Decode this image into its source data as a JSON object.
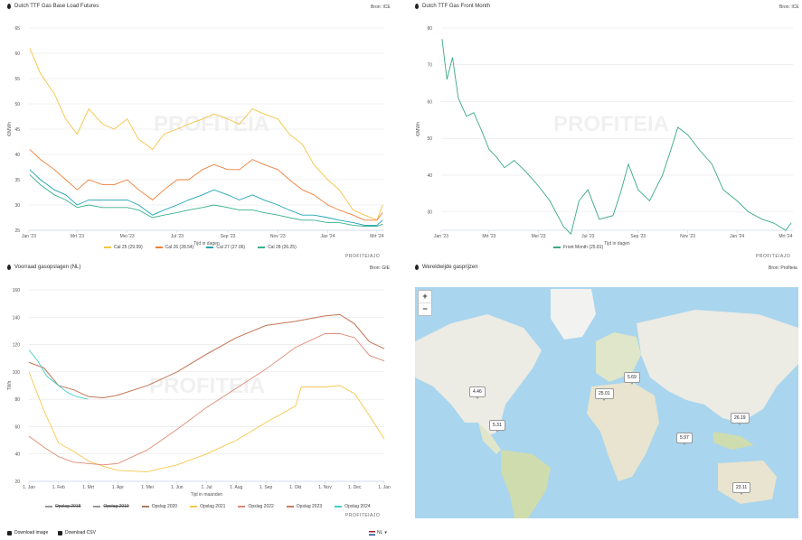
{
  "panels": {
    "futures": {
      "title": "Dutch TTF Gas Base Load Futures",
      "source": "Bron: ICE",
      "brand": "PROFITEIAJO"
    },
    "front": {
      "title": "Dutch TTF Gas Front Month",
      "source": "Bron: ICE",
      "brand": "PROFITEIAJO"
    },
    "storage": {
      "title": "Voorraad gasopslagen (NL)",
      "source": "Bron: GIE",
      "brand": "PROFITEIAJO"
    },
    "world": {
      "title": "Wereldwijde gasprijzen",
      "source": "Bron: Profiteia"
    }
  },
  "watermark": "PROFITEIA",
  "map": {
    "zoom_in": "+",
    "zoom_out": "−",
    "prices": [
      "4.46",
      "5.69",
      "25.01",
      "5.31",
      "26.19",
      "5.97",
      "23.11"
    ]
  },
  "footer": {
    "download_image": "Download image",
    "download_csv": "Download CSV",
    "language": "NL"
  },
  "chart_data": [
    {
      "type": "line",
      "title": "Dutch TTF Gas Base Load Futures",
      "xlabel": "Tijd in dagen",
      "ylabel": "€/MWh",
      "x_ticks": [
        "Jan '23",
        "Mrt '23",
        "Mei '23",
        "Jul '23",
        "Sep '23",
        "Nov '23",
        "Jan '24",
        "Mrt '24"
      ],
      "ylim": [
        25,
        65
      ],
      "y_ticks": [
        25,
        30,
        35,
        40,
        45,
        50,
        55,
        60,
        65
      ],
      "grid": true,
      "legend": "bottom",
      "series": [
        {
          "name": "Cal 25 (29.99)",
          "color": "#f5c343",
          "x": [
            "2023-01-02",
            "2023-01-15",
            "2023-02-01",
            "2023-02-15",
            "2023-03-01",
            "2023-03-15",
            "2023-04-01",
            "2023-04-15",
            "2023-05-01",
            "2023-05-15",
            "2023-06-01",
            "2023-06-15",
            "2023-07-01",
            "2023-07-15",
            "2023-08-01",
            "2023-08-15",
            "2023-09-01",
            "2023-09-15",
            "2023-10-01",
            "2023-10-15",
            "2023-11-01",
            "2023-11-15",
            "2023-12-01",
            "2023-12-15",
            "2024-01-01",
            "2024-01-15",
            "2024-02-01",
            "2024-02-15",
            "2024-03-01",
            "2024-03-08"
          ],
          "values": [
            61,
            56,
            52,
            47,
            44,
            49,
            46,
            45,
            47,
            43,
            41,
            44,
            45,
            46,
            47,
            48,
            47,
            46,
            49,
            48,
            47,
            44,
            42,
            38,
            35,
            33,
            29,
            28,
            27,
            30
          ]
        },
        {
          "name": "Cal 26 (28.54)",
          "color": "#f07e3a",
          "x": [
            "2023-01-02",
            "2023-01-15",
            "2023-02-01",
            "2023-02-15",
            "2023-03-01",
            "2023-03-15",
            "2023-04-01",
            "2023-04-15",
            "2023-05-01",
            "2023-05-15",
            "2023-06-01",
            "2023-06-15",
            "2023-07-01",
            "2023-07-15",
            "2023-08-01",
            "2023-08-15",
            "2023-09-01",
            "2023-09-15",
            "2023-10-01",
            "2023-10-15",
            "2023-11-01",
            "2023-11-15",
            "2023-12-01",
            "2023-12-15",
            "2024-01-01",
            "2024-01-15",
            "2024-02-01",
            "2024-02-15",
            "2024-03-01",
            "2024-03-08"
          ],
          "values": [
            41,
            39,
            37,
            35,
            33,
            35,
            34,
            34,
            35,
            33,
            31,
            33,
            35,
            35,
            37,
            38,
            37,
            37,
            39,
            38,
            37,
            35,
            33,
            32,
            30,
            29,
            28,
            27,
            27,
            28.5
          ]
        },
        {
          "name": "Cal 27 (27.06)",
          "color": "#1fa3b4",
          "x": [
            "2023-01-02",
            "2023-01-15",
            "2023-02-01",
            "2023-02-15",
            "2023-03-01",
            "2023-03-15",
            "2023-04-01",
            "2023-04-15",
            "2023-05-01",
            "2023-05-15",
            "2023-06-01",
            "2023-06-15",
            "2023-07-01",
            "2023-07-15",
            "2023-08-01",
            "2023-08-15",
            "2023-09-01",
            "2023-09-15",
            "2023-10-01",
            "2023-10-15",
            "2023-11-01",
            "2023-11-15",
            "2023-12-01",
            "2023-12-15",
            "2024-01-01",
            "2024-01-15",
            "2024-02-01",
            "2024-02-15",
            "2024-03-01",
            "2024-03-08"
          ],
          "values": [
            37,
            35,
            33,
            32,
            30,
            31,
            31,
            31,
            31,
            30,
            28,
            29,
            30,
            31,
            32,
            33,
            32,
            31,
            32,
            31,
            30,
            29,
            28,
            28,
            27.5,
            27,
            26.5,
            26,
            26,
            27
          ]
        },
        {
          "name": "Cal 28 (26.25)",
          "color": "#3bb08f",
          "x": [
            "2023-01-02",
            "2023-01-15",
            "2023-02-01",
            "2023-02-15",
            "2023-03-01",
            "2023-03-15",
            "2023-04-01",
            "2023-04-15",
            "2023-05-01",
            "2023-05-15",
            "2023-06-01",
            "2023-06-15",
            "2023-07-01",
            "2023-07-15",
            "2023-08-01",
            "2023-08-15",
            "2023-09-01",
            "2023-09-15",
            "2023-10-01",
            "2023-10-15",
            "2023-11-01",
            "2023-11-15",
            "2023-12-01",
            "2023-12-15",
            "2024-01-01",
            "2024-01-15",
            "2024-02-01",
            "2024-02-15",
            "2024-03-01",
            "2024-03-08"
          ],
          "values": [
            36,
            34,
            32,
            31,
            29.5,
            30,
            29.5,
            29.5,
            29.5,
            29,
            27.5,
            28,
            28.5,
            29,
            29.5,
            30,
            29.5,
            29,
            29,
            28.5,
            28,
            27.5,
            27,
            27,
            26.5,
            26.5,
            26,
            25.8,
            25.8,
            26.2
          ]
        }
      ]
    },
    {
      "type": "line",
      "title": "Dutch TTF Gas Front Month",
      "xlabel": "Tijd in dagen",
      "ylabel": "€/MWh",
      "x_ticks": [
        "Jan '23",
        "Mrt '23",
        "Mei '23",
        "Jul '23",
        "Sep '23",
        "Nov '23",
        "Jan '24",
        "Mrt '24"
      ],
      "ylim": [
        25,
        80
      ],
      "y_ticks": [
        30,
        40,
        50,
        60,
        70,
        80
      ],
      "grid": true,
      "legend": "bottom",
      "series": [
        {
          "name": "Front Month (25.81)",
          "color": "#3aa87f",
          "x": [
            "2023-01-02",
            "2023-01-08",
            "2023-01-15",
            "2023-01-22",
            "2023-02-01",
            "2023-02-10",
            "2023-02-20",
            "2023-03-01",
            "2023-03-10",
            "2023-03-20",
            "2023-04-01",
            "2023-04-15",
            "2023-05-01",
            "2023-05-15",
            "2023-06-01",
            "2023-06-10",
            "2023-06-20",
            "2023-07-01",
            "2023-07-15",
            "2023-08-01",
            "2023-08-10",
            "2023-08-20",
            "2023-09-01",
            "2023-09-15",
            "2023-10-01",
            "2023-10-10",
            "2023-10-20",
            "2023-11-01",
            "2023-11-15",
            "2023-12-01",
            "2023-12-15",
            "2024-01-01",
            "2024-01-15",
            "2024-02-01",
            "2024-02-15",
            "2024-03-01",
            "2024-03-08"
          ],
          "values": [
            77,
            66,
            72,
            61,
            56,
            57,
            52,
            47,
            45,
            42,
            44,
            41,
            37,
            33,
            26,
            24,
            33,
            36,
            28,
            29,
            35,
            43,
            36,
            33,
            40,
            46,
            53,
            51,
            47,
            43,
            36,
            33,
            30,
            28,
            27,
            25,
            27
          ]
        }
      ]
    },
    {
      "type": "line",
      "title": "Voorraad gasopslagen (NL)",
      "xlabel": "Tijd in maanden",
      "ylabel": "TWh",
      "x_ticks": [
        "1. Jan",
        "1. Feb",
        "1. Mrt",
        "1. Apr",
        "1. Mei",
        "1. Jun",
        "1. Jul",
        "1. Aug",
        "1. Sep",
        "1. Okt",
        "1. Nov",
        "1. Dec",
        "1. Jan"
      ],
      "ylim": [
        20,
        160
      ],
      "y_ticks": [
        20,
        40,
        60,
        80,
        100,
        120,
        140,
        160
      ],
      "grid": true,
      "legend": "bottom",
      "series": [
        {
          "name": "Opslag 2018",
          "color": "#999999",
          "x": [],
          "values": []
        },
        {
          "name": "Opslag 2019",
          "color": "#999999",
          "x": [],
          "values": []
        },
        {
          "name": "Opslag 2020",
          "color": "#aa7b64",
          "x": [
            0,
            0.5,
            1,
            1.5,
            2,
            2.5,
            3,
            4,
            5,
            6,
            7,
            8,
            9,
            10,
            10.5,
            11,
            11.5,
            12
          ],
          "values": [
            107,
            103,
            90,
            87,
            82,
            81,
            83,
            90,
            100,
            113,
            125,
            134,
            137,
            141,
            142,
            135,
            122,
            117
          ]
        },
        {
          "name": "Opslag 2021",
          "color": "#f7c750",
          "x": [
            0,
            0.5,
            1,
            1.5,
            2,
            2.5,
            3,
            4,
            5,
            6,
            7,
            8,
            9,
            9.2,
            10,
            10.5,
            11,
            11.5,
            12
          ],
          "values": [
            100,
            72,
            48,
            42,
            35,
            31,
            28,
            27,
            32,
            40,
            50,
            63,
            75,
            89,
            89,
            90,
            84,
            68,
            51
          ]
        },
        {
          "name": "Opslag 2022",
          "color": "#e08b75",
          "x": [
            0,
            0.5,
            1,
            1.5,
            2,
            2.5,
            3,
            4,
            5,
            6,
            7,
            8,
            9,
            10,
            10.5,
            11,
            11.5,
            12
          ],
          "values": [
            53,
            45,
            38,
            34,
            33,
            32,
            33,
            43,
            58,
            74,
            88,
            102,
            118,
            128,
            128,
            125,
            112,
            108
          ]
        },
        {
          "name": "Opslag 2023",
          "color": "#c97b5c",
          "x": [
            0,
            0.5,
            1,
            1.5,
            2,
            2.5,
            3,
            4,
            5,
            6,
            7,
            8,
            9,
            10,
            10.5,
            11,
            11.5,
            12
          ],
          "values": [
            107,
            103,
            90,
            87,
            82,
            81,
            83,
            90,
            100,
            113,
            125,
            134,
            137,
            141,
            142,
            135,
            122,
            117
          ]
        },
        {
          "name": "Opslag 2024",
          "color": "#3fd0c8",
          "x": [
            0,
            0.3,
            0.6,
            1,
            1.3,
            1.6,
            2
          ],
          "values": [
            116,
            108,
            97,
            90,
            85,
            82,
            80
          ]
        }
      ]
    }
  ]
}
